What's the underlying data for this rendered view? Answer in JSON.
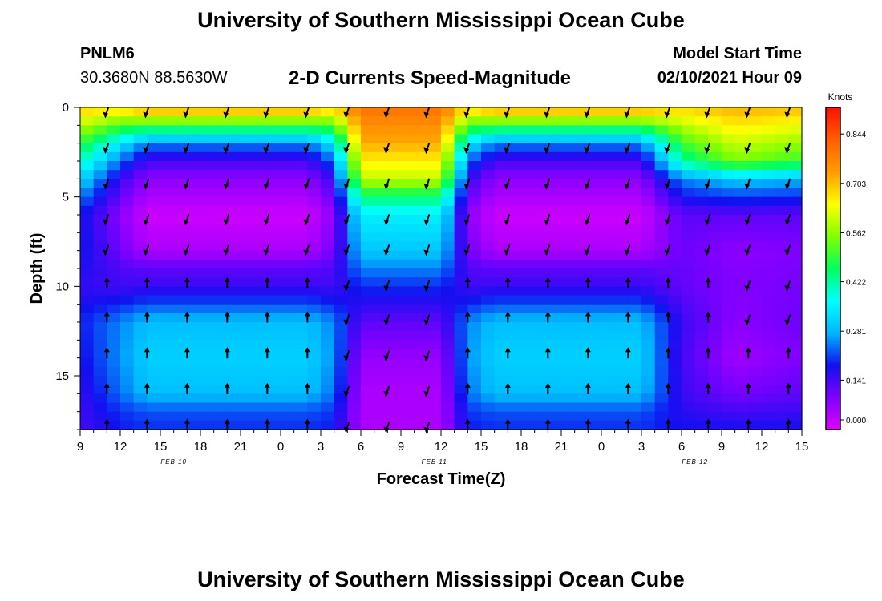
{
  "page": {
    "title": "University of Southern Mississippi Ocean Cube",
    "footer_title": "University of Southern Mississippi Ocean Cube",
    "station": "PNLM6",
    "coordinates": "30.3680N 88.5630W",
    "subtitle": "2-D Currents Speed-Magnitude",
    "model_label": "Model Start Time",
    "model_time": "02/10/2021 Hour 09"
  },
  "chart_data": {
    "type": "heatmap",
    "title": "2-D Currents Speed-Magnitude",
    "xlabel": "Forecast Time(Z)",
    "ylabel": "Depth (ft)",
    "x_start_hour": 9,
    "x_end_hour": 63,
    "x_ticks": [
      {
        "hour": 9,
        "label": "9"
      },
      {
        "hour": 12,
        "label": "12"
      },
      {
        "hour": 15,
        "label": "15"
      },
      {
        "hour": 18,
        "label": "18"
      },
      {
        "hour": 21,
        "label": "21"
      },
      {
        "hour": 24,
        "label": "0"
      },
      {
        "hour": 27,
        "label": "3"
      },
      {
        "hour": 30,
        "label": "6"
      },
      {
        "hour": 33,
        "label": "9"
      },
      {
        "hour": 36,
        "label": "12"
      },
      {
        "hour": 39,
        "label": "15"
      },
      {
        "hour": 42,
        "label": "18"
      },
      {
        "hour": 45,
        "label": "21"
      },
      {
        "hour": 48,
        "label": "0"
      },
      {
        "hour": 51,
        "label": "3"
      },
      {
        "hour": 54,
        "label": "6"
      },
      {
        "hour": 57,
        "label": "9"
      },
      {
        "hour": 60,
        "label": "12"
      },
      {
        "hour": 63,
        "label": "15"
      }
    ],
    "date_labels": [
      {
        "hour": 16,
        "label": "FEB 10"
      },
      {
        "hour": 35.5,
        "label": "FEB 11"
      },
      {
        "hour": 55,
        "label": "FEB 12"
      }
    ],
    "ylim": [
      0,
      18
    ],
    "y_ticks": [
      0,
      5,
      10,
      15
    ],
    "colorbar": {
      "unit": "Knots",
      "min": 0.0,
      "max": 0.92,
      "ticks": [
        {
          "value": 0.0,
          "label": "0.000"
        },
        {
          "value": 0.141,
          "label": "0.141"
        },
        {
          "value": 0.281,
          "label": "0.281"
        },
        {
          "value": 0.422,
          "label": "0.422"
        },
        {
          "value": 0.562,
          "label": "0.562"
        },
        {
          "value": 0.703,
          "label": "0.703"
        },
        {
          "value": 0.844,
          "label": "0.844"
        }
      ],
      "colors": [
        "#e000ff",
        "#8000ff",
        "#1010f0",
        "#00b4ff",
        "#00ffff",
        "#00ff60",
        "#80ff00",
        "#ffff00",
        "#ff9c00",
        "#ff6000",
        "#ff1000"
      ]
    },
    "grid": false,
    "legend": "colorbar-right",
    "arrow_depths_ft": [
      0.2,
      2.2,
      4.2,
      6.2,
      7.9,
      9.9,
      11.8,
      13.8,
      15.8,
      17.8
    ],
    "arrow_hours": [
      11,
      14,
      17,
      20,
      23,
      26,
      29,
      32,
      35,
      38,
      41,
      44,
      47,
      50,
      53,
      56,
      59,
      62
    ],
    "speed_profiles": {
      "strong_surface": [
        [
          0,
          0.8
        ],
        [
          2,
          0.72
        ],
        [
          4,
          0.6
        ],
        [
          5,
          0.45
        ],
        [
          6,
          0.35
        ],
        [
          8,
          0.3
        ],
        [
          10,
          0.2
        ],
        [
          12,
          0.12
        ],
        [
          14,
          0.07
        ],
        [
          16,
          0.05
        ],
        [
          18,
          0.05
        ]
      ],
      "layered": [
        [
          0,
          0.75
        ],
        [
          1,
          0.5
        ],
        [
          2,
          0.25
        ],
        [
          3,
          0.14
        ],
        [
          4,
          0.08
        ],
        [
          6,
          0.02
        ],
        [
          8,
          0.05
        ],
        [
          9,
          0.12
        ],
        [
          10,
          0.15
        ],
        [
          11,
          0.22
        ],
        [
          12,
          0.29
        ],
        [
          14,
          0.31
        ],
        [
          16,
          0.29
        ],
        [
          17,
          0.22
        ],
        [
          18,
          0.2
        ]
      ],
      "shoulder": [
        [
          0,
          0.65
        ],
        [
          2,
          0.4
        ],
        [
          4,
          0.2
        ],
        [
          6,
          0.12
        ],
        [
          8,
          0.14
        ],
        [
          10,
          0.14
        ],
        [
          12,
          0.22
        ],
        [
          14,
          0.22
        ],
        [
          16,
          0.2
        ],
        [
          18,
          0.18
        ]
      ],
      "tail": [
        [
          0,
          0.72
        ],
        [
          3,
          0.55
        ],
        [
          4,
          0.3
        ],
        [
          6,
          0.12
        ],
        [
          8,
          0.08
        ],
        [
          10,
          0.09
        ],
        [
          12,
          0.08
        ],
        [
          14,
          0.06
        ],
        [
          16,
          0.1
        ],
        [
          18,
          0.18
        ]
      ]
    },
    "profile_weights": [
      [
        9,
        {
          "strong_surface": 0.3,
          "shoulder": 0.7
        }
      ],
      [
        12,
        {
          "shoulder": 0.6,
          "layered": 0.4
        }
      ],
      [
        14,
        {
          "layered": 1
        }
      ],
      [
        26,
        {
          "layered": 1
        }
      ],
      [
        28,
        {
          "shoulder": 0.6,
          "layered": 0.4
        }
      ],
      [
        30,
        {
          "strong_surface": 1
        }
      ],
      [
        36,
        {
          "strong_surface": 1
        }
      ],
      [
        38,
        {
          "shoulder": 0.6,
          "layered": 0.4
        }
      ],
      [
        40,
        {
          "layered": 1
        }
      ],
      [
        51,
        {
          "layered": 1
        }
      ],
      [
        54,
        {
          "shoulder": 0.5,
          "tail": 0.5
        }
      ],
      [
        58,
        {
          "tail": 1
        }
      ],
      [
        63,
        {
          "tail": 0.8,
          "shoulder": 0.2
        }
      ]
    ],
    "direction_zones": [
      {
        "from_hour": 9,
        "to_hour": 28,
        "upper_dir": "down",
        "lower_dir": "up",
        "switch_depth": 9
      },
      {
        "from_hour": 28,
        "to_hour": 37,
        "upper_dir": "down",
        "lower_dir": "down",
        "switch_depth": 18
      },
      {
        "from_hour": 37,
        "to_hour": 56,
        "upper_dir": "down",
        "lower_dir": "up",
        "switch_depth": 9
      },
      {
        "from_hour": 56,
        "to_hour": 63,
        "upper_dir": "down",
        "lower_dir": "up",
        "switch_depth": 12
      }
    ]
  }
}
